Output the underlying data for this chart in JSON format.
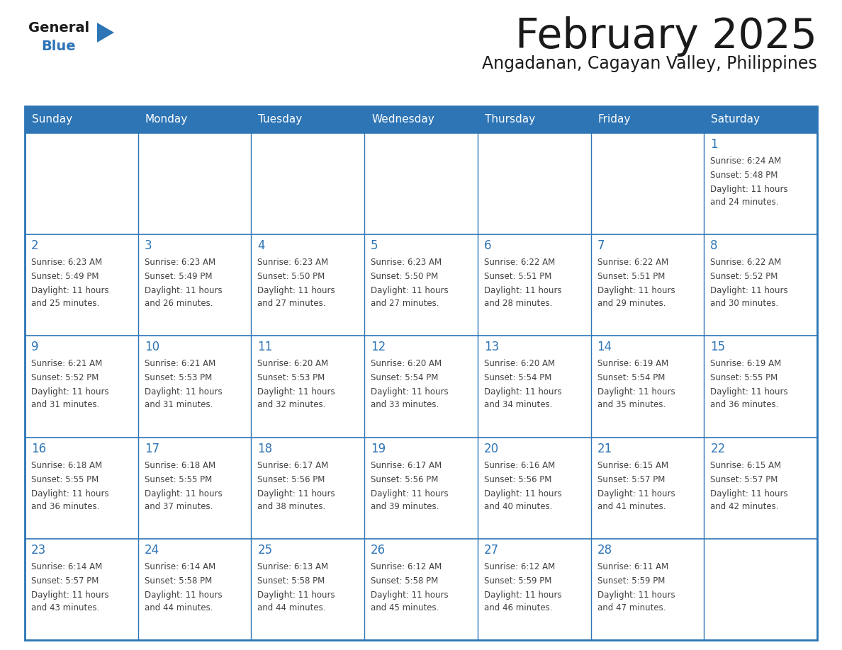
{
  "title": "February 2025",
  "subtitle": "Angadanan, Cagayan Valley, Philippines",
  "days_of_week": [
    "Sunday",
    "Monday",
    "Tuesday",
    "Wednesday",
    "Thursday",
    "Friday",
    "Saturday"
  ],
  "header_bg": "#2E75B6",
  "header_text_color": "#FFFFFF",
  "cell_border_color": "#2E75B6",
  "day_number_color": "#2E75B6",
  "info_text_color": "#404040",
  "white_bg": "#FFFFFF",
  "title_color": "#1A1A1A",
  "subtitle_color": "#1A1A1A",
  "logo_general_color": "#1A1A1A",
  "logo_blue_color": "#2E75B6",
  "calendar_data": [
    [
      null,
      null,
      null,
      null,
      null,
      null,
      {
        "day": 1,
        "sunrise": "6:24 AM",
        "sunset": "5:48 PM",
        "daylight": "11 hours and 24 minutes."
      }
    ],
    [
      {
        "day": 2,
        "sunrise": "6:23 AM",
        "sunset": "5:49 PM",
        "daylight": "11 hours and 25 minutes."
      },
      {
        "day": 3,
        "sunrise": "6:23 AM",
        "sunset": "5:49 PM",
        "daylight": "11 hours and 26 minutes."
      },
      {
        "day": 4,
        "sunrise": "6:23 AM",
        "sunset": "5:50 PM",
        "daylight": "11 hours and 27 minutes."
      },
      {
        "day": 5,
        "sunrise": "6:23 AM",
        "sunset": "5:50 PM",
        "daylight": "11 hours and 27 minutes."
      },
      {
        "day": 6,
        "sunrise": "6:22 AM",
        "sunset": "5:51 PM",
        "daylight": "11 hours and 28 minutes."
      },
      {
        "day": 7,
        "sunrise": "6:22 AM",
        "sunset": "5:51 PM",
        "daylight": "11 hours and 29 minutes."
      },
      {
        "day": 8,
        "sunrise": "6:22 AM",
        "sunset": "5:52 PM",
        "daylight": "11 hours and 30 minutes."
      }
    ],
    [
      {
        "day": 9,
        "sunrise": "6:21 AM",
        "sunset": "5:52 PM",
        "daylight": "11 hours and 31 minutes."
      },
      {
        "day": 10,
        "sunrise": "6:21 AM",
        "sunset": "5:53 PM",
        "daylight": "11 hours and 31 minutes."
      },
      {
        "day": 11,
        "sunrise": "6:20 AM",
        "sunset": "5:53 PM",
        "daylight": "11 hours and 32 minutes."
      },
      {
        "day": 12,
        "sunrise": "6:20 AM",
        "sunset": "5:54 PM",
        "daylight": "11 hours and 33 minutes."
      },
      {
        "day": 13,
        "sunrise": "6:20 AM",
        "sunset": "5:54 PM",
        "daylight": "11 hours and 34 minutes."
      },
      {
        "day": 14,
        "sunrise": "6:19 AM",
        "sunset": "5:54 PM",
        "daylight": "11 hours and 35 minutes."
      },
      {
        "day": 15,
        "sunrise": "6:19 AM",
        "sunset": "5:55 PM",
        "daylight": "11 hours and 36 minutes."
      }
    ],
    [
      {
        "day": 16,
        "sunrise": "6:18 AM",
        "sunset": "5:55 PM",
        "daylight": "11 hours and 36 minutes."
      },
      {
        "day": 17,
        "sunrise": "6:18 AM",
        "sunset": "5:55 PM",
        "daylight": "11 hours and 37 minutes."
      },
      {
        "day": 18,
        "sunrise": "6:17 AM",
        "sunset": "5:56 PM",
        "daylight": "11 hours and 38 minutes."
      },
      {
        "day": 19,
        "sunrise": "6:17 AM",
        "sunset": "5:56 PM",
        "daylight": "11 hours and 39 minutes."
      },
      {
        "day": 20,
        "sunrise": "6:16 AM",
        "sunset": "5:56 PM",
        "daylight": "11 hours and 40 minutes."
      },
      {
        "day": 21,
        "sunrise": "6:15 AM",
        "sunset": "5:57 PM",
        "daylight": "11 hours and 41 minutes."
      },
      {
        "day": 22,
        "sunrise": "6:15 AM",
        "sunset": "5:57 PM",
        "daylight": "11 hours and 42 minutes."
      }
    ],
    [
      {
        "day": 23,
        "sunrise": "6:14 AM",
        "sunset": "5:57 PM",
        "daylight": "11 hours and 43 minutes."
      },
      {
        "day": 24,
        "sunrise": "6:14 AM",
        "sunset": "5:58 PM",
        "daylight": "11 hours and 44 minutes."
      },
      {
        "day": 25,
        "sunrise": "6:13 AM",
        "sunset": "5:58 PM",
        "daylight": "11 hours and 44 minutes."
      },
      {
        "day": 26,
        "sunrise": "6:12 AM",
        "sunset": "5:58 PM",
        "daylight": "11 hours and 45 minutes."
      },
      {
        "day": 27,
        "sunrise": "6:12 AM",
        "sunset": "5:59 PM",
        "daylight": "11 hours and 46 minutes."
      },
      {
        "day": 28,
        "sunrise": "6:11 AM",
        "sunset": "5:59 PM",
        "daylight": "11 hours and 47 minutes."
      },
      null
    ]
  ]
}
